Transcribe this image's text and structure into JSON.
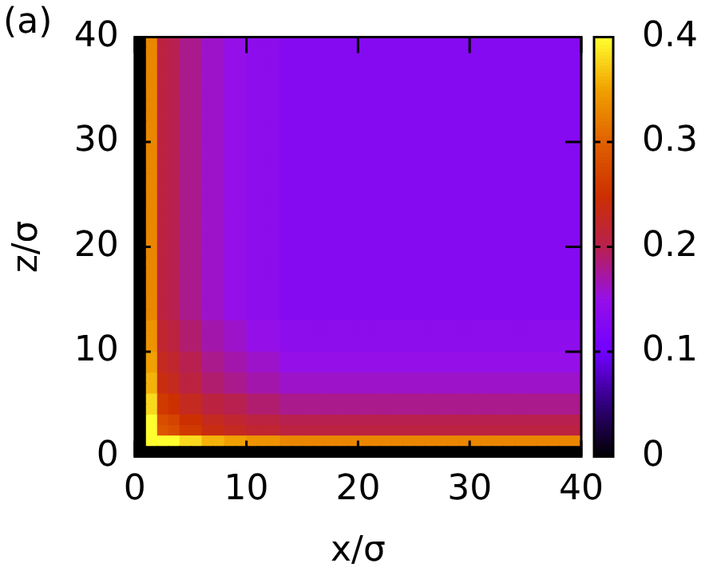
{
  "chart_data": {
    "type": "heatmap",
    "xlabel": "x/σ",
    "ylabel": "z/σ",
    "annotations": [
      "(a)"
    ],
    "cells": [
      [
        0,
        0.33,
        0.21,
        0.2,
        0.18,
        0.18,
        0.16,
        0.16,
        0.15,
        0.15,
        0.14,
        0.14,
        0.14,
        0.13,
        0.13,
        0.13,
        0.13,
        0.13,
        0.13,
        0.13,
        0.13,
        0.13,
        0.13,
        0.13,
        0.13,
        0.13,
        0.13,
        0.13,
        0.13,
        0.13,
        0.13,
        0.13,
        0.13,
        0.13,
        0.13,
        0.13,
        0.13,
        0.13,
        0.13,
        0.13
      ],
      [
        0,
        0.33,
        0.21,
        0.2,
        0.18,
        0.18,
        0.16,
        0.16,
        0.15,
        0.15,
        0.14,
        0.14,
        0.14,
        0.13,
        0.13,
        0.13,
        0.13,
        0.13,
        0.13,
        0.13,
        0.13,
        0.13,
        0.13,
        0.13,
        0.13,
        0.13,
        0.13,
        0.13,
        0.13,
        0.13,
        0.13,
        0.13,
        0.13,
        0.13,
        0.13,
        0.13,
        0.13,
        0.13,
        0.13,
        0.13
      ],
      [
        0,
        0.33,
        0.21,
        0.2,
        0.18,
        0.18,
        0.16,
        0.16,
        0.15,
        0.15,
        0.14,
        0.14,
        0.14,
        0.13,
        0.13,
        0.13,
        0.13,
        0.13,
        0.13,
        0.13,
        0.13,
        0.13,
        0.13,
        0.13,
        0.13,
        0.13,
        0.13,
        0.13,
        0.13,
        0.13,
        0.13,
        0.13,
        0.13,
        0.13,
        0.13,
        0.13,
        0.13,
        0.13,
        0.13,
        0.13
      ],
      [
        0,
        0.33,
        0.21,
        0.2,
        0.18,
        0.18,
        0.16,
        0.16,
        0.15,
        0.15,
        0.14,
        0.14,
        0.14,
        0.13,
        0.13,
        0.13,
        0.13,
        0.13,
        0.13,
        0.13,
        0.13,
        0.13,
        0.13,
        0.13,
        0.13,
        0.13,
        0.13,
        0.13,
        0.13,
        0.13,
        0.13,
        0.13,
        0.13,
        0.13,
        0.13,
        0.13,
        0.13,
        0.13,
        0.13,
        0.13
      ],
      [
        0,
        0.33,
        0.21,
        0.2,
        0.18,
        0.18,
        0.16,
        0.16,
        0.15,
        0.15,
        0.14,
        0.14,
        0.14,
        0.13,
        0.13,
        0.13,
        0.13,
        0.13,
        0.13,
        0.13,
        0.13,
        0.13,
        0.13,
        0.13,
        0.13,
        0.13,
        0.13,
        0.13,
        0.13,
        0.13,
        0.13,
        0.13,
        0.13,
        0.13,
        0.13,
        0.13,
        0.13,
        0.13,
        0.13,
        0.13
      ],
      [
        0,
        0.33,
        0.21,
        0.2,
        0.18,
        0.18,
        0.16,
        0.16,
        0.15,
        0.15,
        0.14,
        0.14,
        0.14,
        0.13,
        0.13,
        0.13,
        0.13,
        0.13,
        0.13,
        0.13,
        0.13,
        0.13,
        0.13,
        0.13,
        0.13,
        0.13,
        0.13,
        0.13,
        0.13,
        0.13,
        0.13,
        0.13,
        0.13,
        0.13,
        0.13,
        0.13,
        0.13,
        0.13,
        0.13,
        0.13
      ],
      [
        0,
        0.33,
        0.21,
        0.2,
        0.18,
        0.18,
        0.16,
        0.16,
        0.15,
        0.15,
        0.14,
        0.14,
        0.14,
        0.13,
        0.13,
        0.13,
        0.13,
        0.13,
        0.13,
        0.13,
        0.13,
        0.13,
        0.13,
        0.13,
        0.13,
        0.13,
        0.13,
        0.13,
        0.13,
        0.13,
        0.13,
        0.13,
        0.13,
        0.13,
        0.13,
        0.13,
        0.13,
        0.13,
        0.13,
        0.13
      ],
      [
        0,
        0.33,
        0.21,
        0.2,
        0.18,
        0.18,
        0.16,
        0.16,
        0.15,
        0.15,
        0.14,
        0.14,
        0.14,
        0.13,
        0.13,
        0.13,
        0.13,
        0.13,
        0.13,
        0.13,
        0.13,
        0.13,
        0.13,
        0.13,
        0.13,
        0.13,
        0.13,
        0.13,
        0.13,
        0.13,
        0.13,
        0.13,
        0.13,
        0.13,
        0.13,
        0.13,
        0.13,
        0.13,
        0.13,
        0.13
      ],
      [
        0,
        0.33,
        0.21,
        0.2,
        0.18,
        0.18,
        0.16,
        0.16,
        0.15,
        0.15,
        0.14,
        0.14,
        0.14,
        0.13,
        0.13,
        0.13,
        0.13,
        0.13,
        0.13,
        0.13,
        0.13,
        0.13,
        0.13,
        0.13,
        0.13,
        0.13,
        0.13,
        0.13,
        0.13,
        0.13,
        0.13,
        0.13,
        0.13,
        0.13,
        0.13,
        0.13,
        0.13,
        0.13,
        0.13,
        0.13
      ],
      [
        0,
        0.33,
        0.21,
        0.2,
        0.18,
        0.18,
        0.16,
        0.16,
        0.15,
        0.15,
        0.14,
        0.14,
        0.14,
        0.13,
        0.13,
        0.13,
        0.13,
        0.13,
        0.13,
        0.13,
        0.13,
        0.13,
        0.13,
        0.13,
        0.13,
        0.13,
        0.13,
        0.13,
        0.13,
        0.13,
        0.13,
        0.13,
        0.13,
        0.13,
        0.13,
        0.13,
        0.13,
        0.13,
        0.13,
        0.13
      ],
      [
        0,
        0.33,
        0.21,
        0.2,
        0.18,
        0.18,
        0.16,
        0.16,
        0.15,
        0.15,
        0.14,
        0.14,
        0.14,
        0.13,
        0.13,
        0.13,
        0.13,
        0.13,
        0.13,
        0.13,
        0.13,
        0.13,
        0.13,
        0.13,
        0.13,
        0.13,
        0.13,
        0.13,
        0.13,
        0.13,
        0.13,
        0.13,
        0.13,
        0.13,
        0.13,
        0.13,
        0.13,
        0.13,
        0.13,
        0.13
      ],
      [
        0,
        0.33,
        0.21,
        0.2,
        0.18,
        0.18,
        0.16,
        0.16,
        0.15,
        0.15,
        0.14,
        0.14,
        0.14,
        0.13,
        0.13,
        0.13,
        0.13,
        0.13,
        0.13,
        0.13,
        0.13,
        0.13,
        0.13,
        0.13,
        0.13,
        0.13,
        0.13,
        0.13,
        0.13,
        0.13,
        0.13,
        0.13,
        0.13,
        0.13,
        0.13,
        0.13,
        0.13,
        0.13,
        0.13,
        0.13
      ],
      [
        0,
        0.33,
        0.21,
        0.2,
        0.18,
        0.18,
        0.16,
        0.16,
        0.15,
        0.15,
        0.14,
        0.14,
        0.14,
        0.13,
        0.13,
        0.13,
        0.13,
        0.13,
        0.13,
        0.13,
        0.13,
        0.13,
        0.13,
        0.13,
        0.13,
        0.13,
        0.13,
        0.13,
        0.13,
        0.13,
        0.13,
        0.13,
        0.13,
        0.13,
        0.13,
        0.13,
        0.13,
        0.13,
        0.13,
        0.13
      ],
      [
        0,
        0.33,
        0.21,
        0.2,
        0.18,
        0.18,
        0.16,
        0.16,
        0.15,
        0.15,
        0.14,
        0.14,
        0.14,
        0.13,
        0.13,
        0.13,
        0.13,
        0.13,
        0.13,
        0.13,
        0.13,
        0.13,
        0.13,
        0.13,
        0.13,
        0.13,
        0.13,
        0.13,
        0.13,
        0.13,
        0.13,
        0.13,
        0.13,
        0.13,
        0.13,
        0.13,
        0.13,
        0.13,
        0.13,
        0.13
      ],
      [
        0,
        0.33,
        0.21,
        0.2,
        0.18,
        0.18,
        0.16,
        0.16,
        0.15,
        0.15,
        0.14,
        0.14,
        0.14,
        0.13,
        0.13,
        0.13,
        0.13,
        0.13,
        0.13,
        0.13,
        0.13,
        0.13,
        0.13,
        0.13,
        0.13,
        0.13,
        0.13,
        0.13,
        0.13,
        0.13,
        0.13,
        0.13,
        0.13,
        0.13,
        0.13,
        0.13,
        0.13,
        0.13,
        0.13,
        0.13
      ],
      [
        0,
        0.33,
        0.21,
        0.2,
        0.18,
        0.18,
        0.16,
        0.16,
        0.15,
        0.15,
        0.14,
        0.14,
        0.14,
        0.13,
        0.13,
        0.13,
        0.13,
        0.13,
        0.13,
        0.13,
        0.13,
        0.13,
        0.13,
        0.13,
        0.13,
        0.13,
        0.13,
        0.13,
        0.13,
        0.13,
        0.13,
        0.13,
        0.13,
        0.13,
        0.13,
        0.13,
        0.13,
        0.13,
        0.13,
        0.13
      ],
      [
        0,
        0.33,
        0.21,
        0.2,
        0.18,
        0.18,
        0.16,
        0.16,
        0.15,
        0.15,
        0.14,
        0.14,
        0.14,
        0.13,
        0.13,
        0.13,
        0.13,
        0.13,
        0.13,
        0.13,
        0.13,
        0.13,
        0.13,
        0.13,
        0.13,
        0.13,
        0.13,
        0.13,
        0.13,
        0.13,
        0.13,
        0.13,
        0.13,
        0.13,
        0.13,
        0.13,
        0.13,
        0.13,
        0.13,
        0.13
      ],
      [
        0,
        0.33,
        0.21,
        0.2,
        0.18,
        0.18,
        0.16,
        0.16,
        0.15,
        0.15,
        0.14,
        0.14,
        0.14,
        0.13,
        0.13,
        0.13,
        0.13,
        0.13,
        0.13,
        0.13,
        0.13,
        0.13,
        0.13,
        0.13,
        0.13,
        0.13,
        0.13,
        0.13,
        0.13,
        0.13,
        0.13,
        0.13,
        0.13,
        0.13,
        0.13,
        0.13,
        0.13,
        0.13,
        0.13,
        0.13
      ],
      [
        0,
        0.33,
        0.21,
        0.2,
        0.18,
        0.18,
        0.16,
        0.16,
        0.15,
        0.15,
        0.14,
        0.14,
        0.14,
        0.13,
        0.13,
        0.13,
        0.13,
        0.13,
        0.13,
        0.13,
        0.13,
        0.13,
        0.13,
        0.13,
        0.13,
        0.13,
        0.13,
        0.13,
        0.13,
        0.13,
        0.13,
        0.13,
        0.13,
        0.13,
        0.13,
        0.13,
        0.13,
        0.13,
        0.13,
        0.13
      ],
      [
        0,
        0.33,
        0.21,
        0.2,
        0.18,
        0.18,
        0.16,
        0.16,
        0.15,
        0.15,
        0.14,
        0.14,
        0.14,
        0.13,
        0.13,
        0.13,
        0.13,
        0.13,
        0.13,
        0.13,
        0.13,
        0.13,
        0.13,
        0.13,
        0.13,
        0.13,
        0.13,
        0.13,
        0.13,
        0.13,
        0.13,
        0.13,
        0.13,
        0.13,
        0.13,
        0.13,
        0.13,
        0.13,
        0.13,
        0.13
      ],
      [
        0,
        0.33,
        0.21,
        0.2,
        0.18,
        0.18,
        0.16,
        0.16,
        0.15,
        0.15,
        0.14,
        0.14,
        0.14,
        0.13,
        0.13,
        0.13,
        0.13,
        0.13,
        0.13,
        0.13,
        0.13,
        0.13,
        0.13,
        0.13,
        0.13,
        0.13,
        0.13,
        0.13,
        0.13,
        0.13,
        0.13,
        0.13,
        0.13,
        0.13,
        0.13,
        0.13,
        0.13,
        0.13,
        0.13,
        0.13
      ],
      [
        0,
        0.33,
        0.21,
        0.2,
        0.18,
        0.18,
        0.16,
        0.16,
        0.15,
        0.15,
        0.14,
        0.14,
        0.14,
        0.13,
        0.13,
        0.13,
        0.13,
        0.13,
        0.13,
        0.13,
        0.13,
        0.13,
        0.13,
        0.13,
        0.13,
        0.13,
        0.13,
        0.13,
        0.13,
        0.13,
        0.13,
        0.13,
        0.13,
        0.13,
        0.13,
        0.13,
        0.13,
        0.13,
        0.13,
        0.13
      ],
      [
        0,
        0.33,
        0.21,
        0.2,
        0.18,
        0.18,
        0.16,
        0.16,
        0.15,
        0.15,
        0.14,
        0.14,
        0.14,
        0.13,
        0.13,
        0.13,
        0.13,
        0.13,
        0.13,
        0.13,
        0.13,
        0.13,
        0.13,
        0.13,
        0.13,
        0.13,
        0.13,
        0.13,
        0.13,
        0.13,
        0.13,
        0.13,
        0.13,
        0.13,
        0.13,
        0.13,
        0.13,
        0.13,
        0.13,
        0.13
      ],
      [
        0,
        0.33,
        0.21,
        0.2,
        0.18,
        0.18,
        0.16,
        0.16,
        0.15,
        0.15,
        0.14,
        0.14,
        0.14,
        0.13,
        0.13,
        0.13,
        0.13,
        0.13,
        0.13,
        0.13,
        0.13,
        0.13,
        0.13,
        0.13,
        0.13,
        0.13,
        0.13,
        0.13,
        0.13,
        0.13,
        0.13,
        0.13,
        0.13,
        0.13,
        0.13,
        0.13,
        0.13,
        0.13,
        0.13,
        0.13
      ],
      [
        0,
        0.33,
        0.21,
        0.2,
        0.18,
        0.18,
        0.16,
        0.16,
        0.15,
        0.15,
        0.14,
        0.14,
        0.14,
        0.13,
        0.13,
        0.13,
        0.13,
        0.13,
        0.13,
        0.13,
        0.13,
        0.13,
        0.13,
        0.13,
        0.13,
        0.13,
        0.13,
        0.13,
        0.13,
        0.13,
        0.13,
        0.13,
        0.13,
        0.13,
        0.13,
        0.13,
        0.13,
        0.13,
        0.13,
        0.13
      ],
      [
        0,
        0.33,
        0.21,
        0.2,
        0.18,
        0.18,
        0.16,
        0.16,
        0.15,
        0.15,
        0.14,
        0.14,
        0.14,
        0.13,
        0.13,
        0.13,
        0.13,
        0.13,
        0.13,
        0.13,
        0.13,
        0.13,
        0.13,
        0.13,
        0.13,
        0.13,
        0.13,
        0.13,
        0.13,
        0.13,
        0.13,
        0.13,
        0.13,
        0.13,
        0.13,
        0.13,
        0.13,
        0.13,
        0.13,
        0.13
      ],
      [
        0,
        0.33,
        0.21,
        0.2,
        0.18,
        0.18,
        0.16,
        0.16,
        0.15,
        0.15,
        0.14,
        0.14,
        0.14,
        0.13,
        0.13,
        0.13,
        0.13,
        0.13,
        0.13,
        0.13,
        0.13,
        0.13,
        0.13,
        0.13,
        0.13,
        0.13,
        0.13,
        0.13,
        0.13,
        0.13,
        0.13,
        0.13,
        0.13,
        0.13,
        0.13,
        0.13,
        0.13,
        0.13,
        0.13,
        0.13
      ],
      [
        0,
        0.34,
        0.22,
        0.21,
        0.19,
        0.19,
        0.17,
        0.17,
        0.16,
        0.16,
        0.15,
        0.15,
        0.15,
        0.14,
        0.14,
        0.14,
        0.14,
        0.14,
        0.14,
        0.14,
        0.14,
        0.14,
        0.14,
        0.14,
        0.14,
        0.14,
        0.14,
        0.14,
        0.14,
        0.14,
        0.14,
        0.14,
        0.14,
        0.14,
        0.14,
        0.14,
        0.14,
        0.14,
        0.14,
        0.14
      ],
      [
        0,
        0.34,
        0.22,
        0.21,
        0.19,
        0.19,
        0.17,
        0.17,
        0.16,
        0.16,
        0.15,
        0.15,
        0.15,
        0.14,
        0.14,
        0.14,
        0.14,
        0.14,
        0.14,
        0.14,
        0.14,
        0.14,
        0.14,
        0.14,
        0.14,
        0.14,
        0.14,
        0.14,
        0.14,
        0.14,
        0.14,
        0.14,
        0.14,
        0.14,
        0.14,
        0.14,
        0.14,
        0.14,
        0.14,
        0.14
      ],
      [
        0,
        0.34,
        0.22,
        0.21,
        0.19,
        0.19,
        0.17,
        0.17,
        0.16,
        0.16,
        0.15,
        0.15,
        0.15,
        0.14,
        0.14,
        0.14,
        0.14,
        0.14,
        0.14,
        0.14,
        0.14,
        0.14,
        0.14,
        0.14,
        0.14,
        0.14,
        0.14,
        0.14,
        0.14,
        0.14,
        0.14,
        0.14,
        0.14,
        0.14,
        0.14,
        0.14,
        0.14,
        0.14,
        0.14,
        0.14
      ],
      [
        0,
        0.35,
        0.23,
        0.22,
        0.2,
        0.2,
        0.18,
        0.18,
        0.17,
        0.17,
        0.16,
        0.16,
        0.16,
        0.15,
        0.15,
        0.15,
        0.15,
        0.15,
        0.15,
        0.15,
        0.15,
        0.15,
        0.15,
        0.15,
        0.15,
        0.15,
        0.15,
        0.15,
        0.15,
        0.15,
        0.15,
        0.15,
        0.15,
        0.15,
        0.15,
        0.15,
        0.15,
        0.15,
        0.15,
        0.15
      ],
      [
        0,
        0.35,
        0.23,
        0.22,
        0.2,
        0.2,
        0.18,
        0.18,
        0.17,
        0.17,
        0.16,
        0.16,
        0.16,
        0.15,
        0.15,
        0.15,
        0.15,
        0.15,
        0.15,
        0.15,
        0.15,
        0.15,
        0.15,
        0.15,
        0.15,
        0.15,
        0.15,
        0.15,
        0.15,
        0.15,
        0.15,
        0.15,
        0.15,
        0.15,
        0.15,
        0.15,
        0.15,
        0.15,
        0.15,
        0.15
      ],
      [
        0,
        0.36,
        0.24,
        0.23,
        0.21,
        0.21,
        0.19,
        0.19,
        0.18,
        0.18,
        0.17,
        0.17,
        0.17,
        0.16,
        0.16,
        0.16,
        0.16,
        0.16,
        0.16,
        0.16,
        0.16,
        0.16,
        0.16,
        0.16,
        0.16,
        0.16,
        0.16,
        0.16,
        0.16,
        0.16,
        0.16,
        0.16,
        0.16,
        0.16,
        0.16,
        0.16,
        0.16,
        0.16,
        0.16,
        0.16
      ],
      [
        0,
        0.36,
        0.24,
        0.23,
        0.21,
        0.21,
        0.19,
        0.19,
        0.18,
        0.18,
        0.17,
        0.17,
        0.17,
        0.16,
        0.16,
        0.16,
        0.16,
        0.16,
        0.16,
        0.16,
        0.16,
        0.16,
        0.16,
        0.16,
        0.16,
        0.16,
        0.16,
        0.16,
        0.16,
        0.16,
        0.16,
        0.16,
        0.16,
        0.16,
        0.16,
        0.16,
        0.16,
        0.16,
        0.16,
        0.16
      ],
      [
        0,
        0.38,
        0.26,
        0.25,
        0.23,
        0.23,
        0.21,
        0.21,
        0.2,
        0.2,
        0.19,
        0.19,
        0.19,
        0.18,
        0.18,
        0.18,
        0.18,
        0.18,
        0.18,
        0.18,
        0.18,
        0.18,
        0.18,
        0.18,
        0.18,
        0.18,
        0.18,
        0.18,
        0.18,
        0.18,
        0.18,
        0.18,
        0.18,
        0.18,
        0.18,
        0.18,
        0.18,
        0.18,
        0.18,
        0.18
      ],
      [
        0,
        0.38,
        0.26,
        0.25,
        0.23,
        0.23,
        0.21,
        0.21,
        0.2,
        0.2,
        0.19,
        0.19,
        0.19,
        0.18,
        0.18,
        0.18,
        0.18,
        0.18,
        0.18,
        0.18,
        0.18,
        0.18,
        0.18,
        0.18,
        0.18,
        0.18,
        0.18,
        0.18,
        0.18,
        0.18,
        0.18,
        0.18,
        0.18,
        0.18,
        0.18,
        0.18,
        0.18,
        0.18,
        0.18,
        0.18
      ],
      [
        0,
        0.4,
        0.28,
        0.27,
        0.25,
        0.25,
        0.23,
        0.23,
        0.22,
        0.22,
        0.21,
        0.21,
        0.21,
        0.2,
        0.2,
        0.2,
        0.2,
        0.2,
        0.2,
        0.2,
        0.2,
        0.2,
        0.2,
        0.2,
        0.2,
        0.2,
        0.2,
        0.2,
        0.2,
        0.2,
        0.2,
        0.2,
        0.2,
        0.2,
        0.2,
        0.2,
        0.2,
        0.2,
        0.2,
        0.2
      ],
      [
        0,
        0.4,
        0.29,
        0.28,
        0.26,
        0.26,
        0.24,
        0.24,
        0.23,
        0.23,
        0.22,
        0.22,
        0.22,
        0.21,
        0.21,
        0.21,
        0.21,
        0.21,
        0.21,
        0.21,
        0.21,
        0.21,
        0.21,
        0.21,
        0.21,
        0.21,
        0.21,
        0.21,
        0.21,
        0.21,
        0.21,
        0.21,
        0.21,
        0.21,
        0.21,
        0.21,
        0.21,
        0.21,
        0.21,
        0.21
      ],
      [
        0,
        0.4,
        0.4,
        0.4,
        0.38,
        0.38,
        0.36,
        0.36,
        0.35,
        0.35,
        0.34,
        0.34,
        0.34,
        0.33,
        0.33,
        0.33,
        0.33,
        0.33,
        0.33,
        0.33,
        0.33,
        0.33,
        0.33,
        0.33,
        0.33,
        0.33,
        0.33,
        0.33,
        0.33,
        0.33,
        0.33,
        0.33,
        0.33,
        0.33,
        0.33,
        0.33,
        0.33,
        0.33,
        0.33,
        0.33
      ],
      [
        0,
        0,
        0,
        0,
        0,
        0,
        0,
        0,
        0,
        0,
        0,
        0,
        0,
        0,
        0,
        0,
        0,
        0,
        0,
        0,
        0,
        0,
        0,
        0,
        0,
        0,
        0,
        0,
        0,
        0,
        0,
        0,
        0,
        0,
        0,
        0,
        0,
        0,
        0,
        0
      ]
    ],
    "xlim": [
      0,
      40
    ],
    "ylim": [
      0,
      40
    ],
    "xticks": [
      0,
      10,
      20,
      30,
      40
    ],
    "yticks": [
      0,
      10,
      20,
      30,
      40
    ],
    "clim": [
      0,
      0.4
    ],
    "cticks": [
      0,
      0.1,
      0.2,
      0.3,
      0.4
    ],
    "colors": [
      "#000000",
      "#30007a",
      "#7000ff",
      "#9510e8",
      "#b82050",
      "#cc3000",
      "#e06000",
      "#f0a000",
      "#ffff30"
    ]
  }
}
